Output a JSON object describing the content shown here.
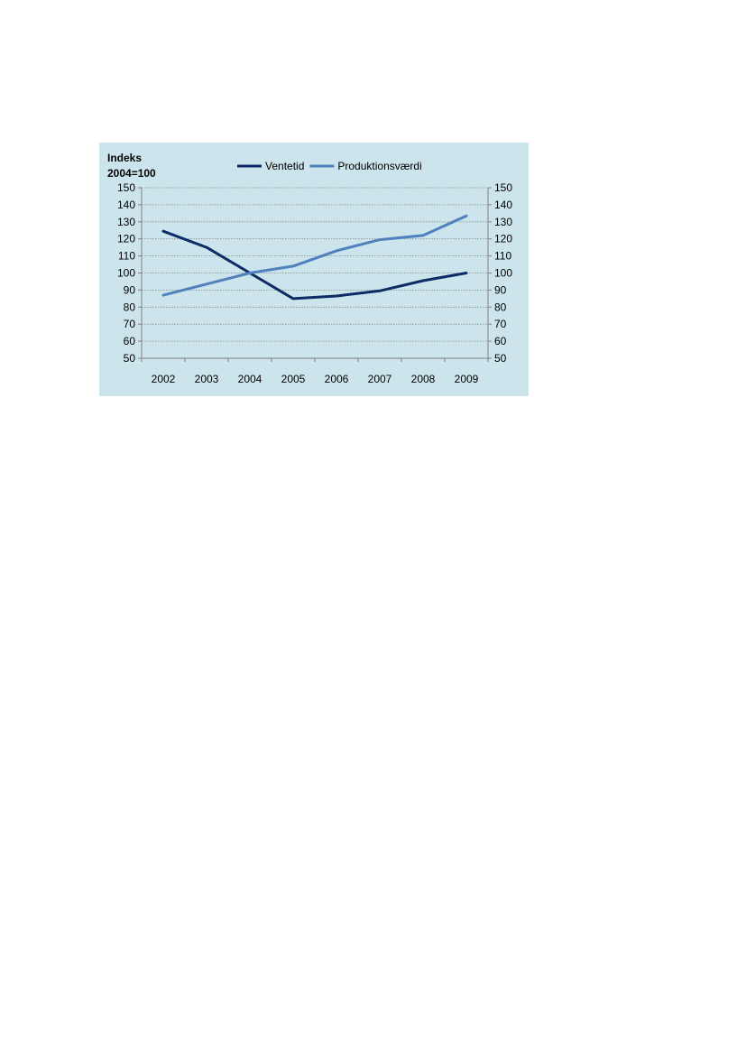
{
  "chart_data": {
    "type": "line",
    "ylabel_line1": "Indeks",
    "ylabel_line2": "2004=100",
    "categories": [
      "2002",
      "2003",
      "2004",
      "2005",
      "2006",
      "2007",
      "2008",
      "2009"
    ],
    "ylim": [
      50,
      150
    ],
    "yticks": [
      50,
      60,
      70,
      80,
      90,
      100,
      110,
      120,
      130,
      140,
      150
    ],
    "secondary_axis": true,
    "grid": true,
    "legend_position": "top",
    "series": [
      {
        "name": "Ventetid",
        "values": [
          124.5,
          115,
          100,
          85,
          86.5,
          89.5,
          95.5,
          100
        ],
        "color": "#0d2c66"
      },
      {
        "name": "Produktionsværdi",
        "values": [
          87,
          93.5,
          100,
          104,
          113,
          119.5,
          122,
          133.5
        ],
        "color": "#4f81bd"
      }
    ]
  }
}
